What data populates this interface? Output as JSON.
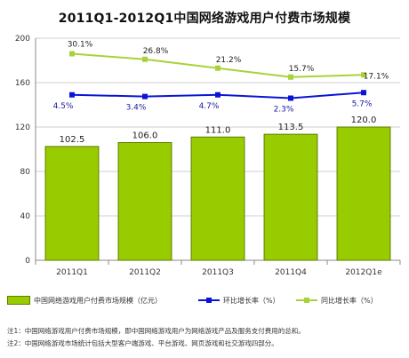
{
  "title": "2011Q1-2012Q1中国网络游戏用户付费市场规模",
  "colors": {
    "bar_fill": "#99cc00",
    "bar_stroke": "#5e7d00",
    "qoq_line": "#0a14d6",
    "yoy_line": "#a8d23a",
    "grid": "#cfcfcf",
    "axis": "#888888"
  },
  "chart_data": {
    "type": "bar",
    "categories": [
      "2011Q1",
      "2011Q2",
      "2011Q3",
      "2011Q4",
      "2012Q1e"
    ],
    "ylim": [
      0,
      200
    ],
    "yticks": [
      0,
      40,
      80,
      120,
      160,
      200
    ],
    "grid": true,
    "legend_position": "bottom",
    "bar_series": {
      "name": "中国网络游戏用户付费市场规模（亿元）",
      "values": [
        102.5,
        106.0,
        111.0,
        113.5,
        120.0
      ],
      "labels": [
        "102.5",
        "106.0",
        "111.0",
        "113.5",
        "120.0"
      ]
    },
    "line_series": [
      {
        "name": "环比增长率（%）",
        "values": [
          4.5,
          3.4,
          4.7,
          2.3,
          5.7
        ],
        "labels": [
          "4.5%",
          "3.4%",
          "4.7%",
          "2.3%",
          "5.7%"
        ],
        "plot_y": [
          149,
          147.5,
          149,
          146,
          151
        ]
      },
      {
        "name": "同比增长率（%）",
        "values": [
          30.1,
          26.8,
          21.2,
          15.7,
          17.1
        ],
        "labels": [
          "30.1%",
          "26.8%",
          "21.2%",
          "15.7%",
          "17.1%"
        ],
        "plot_y": [
          186,
          181,
          173,
          165,
          167
        ]
      }
    ]
  },
  "notes": [
    "注1：中国网络游戏用户付费市场规模，即中国网络游戏用户为网络游戏产品及服务支付费用的总和。",
    "注2：中国网络游戏市场统计包括大型客户端游戏、平台游戏、网页游戏和社交游戏四部分。"
  ]
}
